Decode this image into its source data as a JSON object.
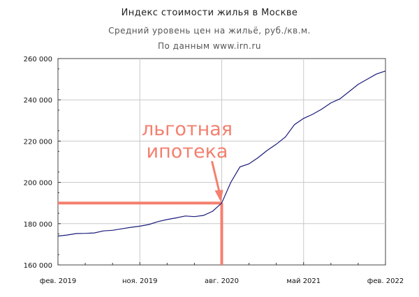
{
  "chart_data": {
    "type": "line",
    "title": "Индекс стоимости жилья в Москве",
    "subtitle": "Средний уровень цен на жильё, руб./кв.м.",
    "source": "По данным www.irn.ru",
    "ylim": [
      160000,
      260000
    ],
    "y_ticks": [
      {
        "value": 160000,
        "label": "160 000"
      },
      {
        "value": 180000,
        "label": "180 000"
      },
      {
        "value": 200000,
        "label": "200 000"
      },
      {
        "value": 220000,
        "label": "220 000"
      },
      {
        "value": 240000,
        "label": "240 000"
      },
      {
        "value": 260000,
        "label": "260 000"
      }
    ],
    "x_ticks": [
      {
        "value": "2019-02",
        "label": "фев. 2019"
      },
      {
        "value": "2019-11",
        "label": "ноя. 2019"
      },
      {
        "value": "2020-08",
        "label": "авг. 2020"
      },
      {
        "value": "2021-05",
        "label": "май 2021"
      },
      {
        "value": "2022-02",
        "label": "фев. 2022"
      }
    ],
    "xlim": [
      "2019-02",
      "2022-02"
    ],
    "grid": true,
    "line_color": "#1a1a7a",
    "series": [
      {
        "x": [
          "2019-02",
          "2019-03",
          "2019-04",
          "2019-05",
          "2019-06",
          "2019-07",
          "2019-08",
          "2019-09",
          "2019-10",
          "2019-11",
          "2019-12",
          "2020-01",
          "2020-02",
          "2020-03",
          "2020-04",
          "2020-05",
          "2020-06",
          "2020-07",
          "2020-08",
          "2020-09",
          "2020-10",
          "2020-11",
          "2020-12",
          "2021-01",
          "2021-02",
          "2021-03",
          "2021-04",
          "2021-05",
          "2021-06",
          "2021-07",
          "2021-08",
          "2021-09",
          "2021-10",
          "2021-11",
          "2021-12",
          "2022-01",
          "2022-02"
        ],
        "values": [
          174000,
          174500,
          175200,
          175300,
          175500,
          176500,
          176800,
          177500,
          178200,
          178800,
          179600,
          181000,
          182000,
          182800,
          183700,
          183400,
          184000,
          186000,
          190000,
          200000,
          207500,
          209000,
          212000,
          215500,
          218500,
          222000,
          228000,
          231000,
          233000,
          235500,
          238500,
          240500,
          244000,
          247500,
          250000,
          252500,
          254000
        ]
      }
    ],
    "annotations": [
      {
        "text_lines": [
          "льготная",
          "ипотека"
        ],
        "color": "#f4806f",
        "x": "2020-08",
        "y": 190000,
        "arrow": true,
        "guide_lines": true
      }
    ]
  }
}
